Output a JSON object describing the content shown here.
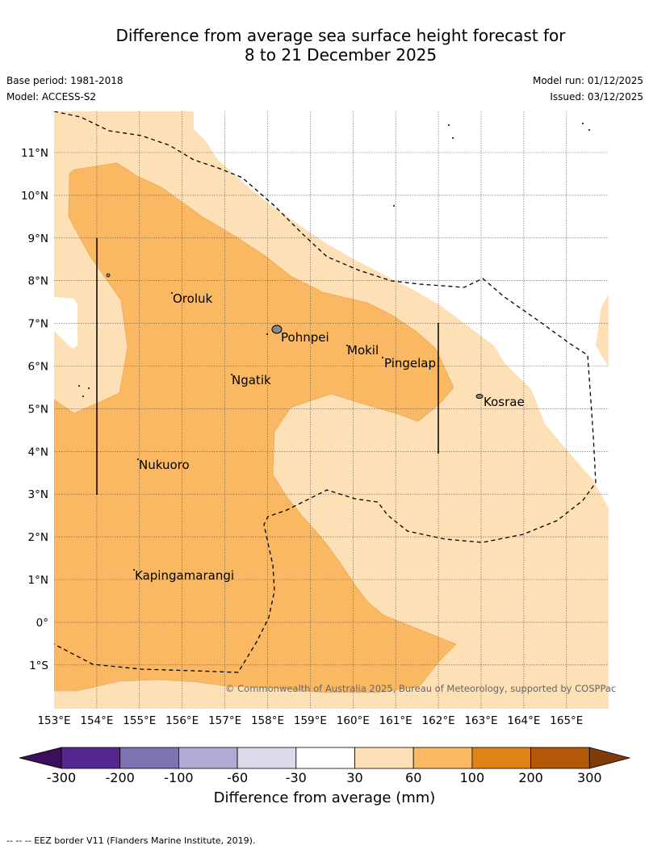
{
  "header": {
    "title_line1": "Difference from average sea surface height forecast for",
    "title_line2": "8 to 21 December 2025",
    "base_period": "Base period: 1981-2018",
    "model": "Model: ACCESS-S2",
    "model_run": "Model run: 01/12/2025",
    "issued": "Issued: 03/12/2025"
  },
  "map": {
    "lon_labels": [
      "153°E",
      "154°E",
      "155°E",
      "156°E",
      "157°E",
      "158°E",
      "159°E",
      "160°E",
      "161°E",
      "162°E",
      "163°E",
      "164°E",
      "165°E"
    ],
    "lat_labels": [
      "11°N",
      "10°N",
      "9°N",
      "8°N",
      "7°N",
      "6°N",
      "5°N",
      "4°N",
      "3°N",
      "2°N",
      "1°N",
      "0°",
      "1°S"
    ],
    "places": [
      {
        "name": "Oroluk"
      },
      {
        "name": "Pohnpei"
      },
      {
        "name": "Mokil"
      },
      {
        "name": "Pingelap"
      },
      {
        "name": "Ngatik"
      },
      {
        "name": "Kosrae"
      },
      {
        "name": "Nukuoro"
      },
      {
        "name": "Kapingamarangi"
      }
    ],
    "copyright": "© Commonwealth of Australia 2025, Bureau of Meteorology, supported by COSPPac",
    "colors": {
      "light": "#fde0b6",
      "mid": "#fbb862",
      "eez": "#000000"
    }
  },
  "colorbar": {
    "ticks": [
      "-300",
      "-200",
      "-100",
      "-60",
      "-30",
      "30",
      "60",
      "100",
      "200",
      "300"
    ],
    "colors": [
      "#3b0f5a",
      "#54278f",
      "#7f72b0",
      "#b1aad4",
      "#dadaeb",
      "#ffffff",
      "#fde0b6",
      "#fbb862",
      "#e08214",
      "#b35806",
      "#7f3b08"
    ],
    "title": "Difference from average (mm)"
  },
  "footer": "--  --  -- EEZ border V11 (Flanders Marine Institute, 2019)."
}
